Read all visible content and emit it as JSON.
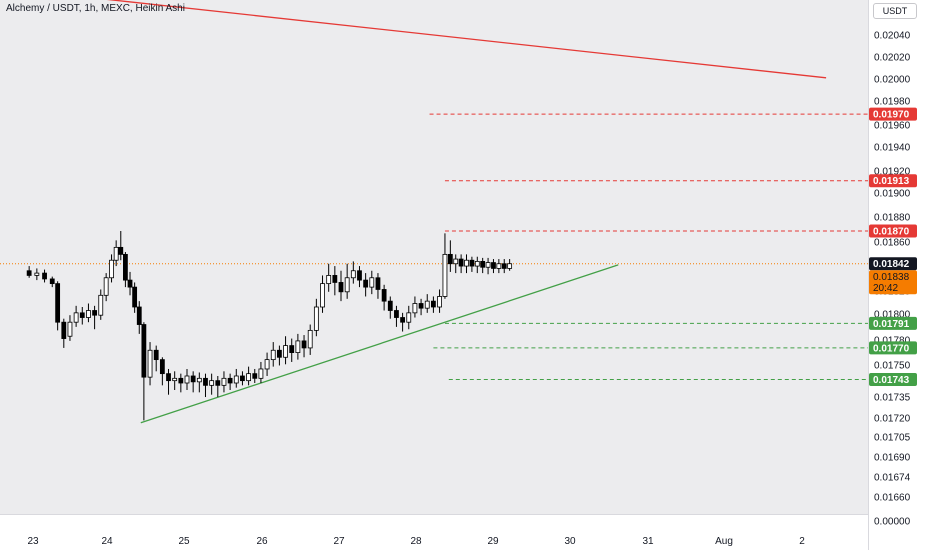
{
  "header": {
    "title": "Alchemy / USDT, 1h, MEXC, Heikin Ashi",
    "currency": "USDT"
  },
  "colors": {
    "up": "#ffffff",
    "down": "#000000",
    "resistance_red": "#e53935",
    "support_green": "#43a047",
    "current_price_bg": "#131722",
    "countdown_bg": "#f57c00"
  },
  "chart_data": {
    "type": "candlestick",
    "x_axis": {
      "ticks": [
        "23",
        "24",
        "25",
        "26",
        "27",
        "28",
        "29",
        "30",
        "31",
        "Aug",
        "2"
      ]
    },
    "y_axis": {
      "ticks": [
        "0.02040",
        "0.02020",
        "0.02000",
        "0.01980",
        "0.01960",
        "0.01940",
        "0.01920",
        "0.01900",
        "0.01880",
        "0.01860",
        "0.01820",
        "0.01800",
        "0.01780",
        "0.01750",
        "0.01735",
        "0.01720",
        "0.01705",
        "0.01690",
        "0.01674",
        "0.01660",
        "0.00000"
      ]
    },
    "lines": [
      {
        "style": "solid",
        "color": "red",
        "from": {
          "day": 23.0,
          "price": 0.02075
        },
        "to": {
          "day": 33.3,
          "price": 0.02001
        }
      },
      {
        "style": "solid",
        "color": "green",
        "from": {
          "day": 24.4,
          "price": 0.01706
        },
        "to": {
          "day": 30.6,
          "price": 0.01841
        }
      }
    ],
    "levels": [
      {
        "price": 0.0197,
        "label": "0.01970",
        "color": "red",
        "from_day": 28.15
      },
      {
        "price": 0.01913,
        "label": "0.01913",
        "color": "red",
        "from_day": 28.35
      },
      {
        "price": 0.0187,
        "label": "0.01870",
        "color": "red",
        "from_day": 28.35
      },
      {
        "price": 0.01791,
        "label": "0.01791",
        "color": "green",
        "from_day": 28.35
      },
      {
        "price": 0.0177,
        "label": "0.01770",
        "color": "green",
        "from_day": 28.2
      },
      {
        "price": 0.01743,
        "label": "0.01743",
        "color": "green",
        "from_day": 28.4
      }
    ],
    "current_price": {
      "value": 0.01842,
      "label": "0.01842"
    },
    "secondary_price": {
      "value": 0.01838,
      "label": "0.01838",
      "countdown": "20:42"
    },
    "candles": [
      {
        "d": 22.95,
        "o": 0.01836,
        "c": 0.01832,
        "h": 0.0184,
        "l": 0.0183
      },
      {
        "d": 23.05,
        "o": 0.01832,
        "c": 0.01834,
        "h": 0.01838,
        "l": 0.01828
      },
      {
        "d": 23.15,
        "o": 0.01834,
        "c": 0.01829,
        "h": 0.01837,
        "l": 0.01826
      },
      {
        "d": 23.25,
        "o": 0.01829,
        "c": 0.01825,
        "h": 0.01831,
        "l": 0.01822
      },
      {
        "d": 23.32,
        "o": 0.01825,
        "c": 0.01792,
        "h": 0.01827,
        "l": 0.01785
      },
      {
        "d": 23.4,
        "o": 0.01792,
        "c": 0.01778,
        "h": 0.01795,
        "l": 0.0177
      },
      {
        "d": 23.48,
        "o": 0.0178,
        "c": 0.01792,
        "h": 0.01798,
        "l": 0.01776
      },
      {
        "d": 23.56,
        "o": 0.01792,
        "c": 0.018,
        "h": 0.01806,
        "l": 0.01788
      },
      {
        "d": 23.64,
        "o": 0.018,
        "c": 0.01796,
        "h": 0.01805,
        "l": 0.0179
      },
      {
        "d": 23.72,
        "o": 0.01796,
        "c": 0.01802,
        "h": 0.01808,
        "l": 0.01792
      },
      {
        "d": 23.8,
        "o": 0.01802,
        "c": 0.01798,
        "h": 0.01806,
        "l": 0.01786
      },
      {
        "d": 23.88,
        "o": 0.01798,
        "c": 0.01815,
        "h": 0.0182,
        "l": 0.01794
      },
      {
        "d": 23.95,
        "o": 0.01815,
        "c": 0.0183,
        "h": 0.01834,
        "l": 0.0181
      },
      {
        "d": 24.02,
        "o": 0.0183,
        "c": 0.01845,
        "h": 0.0185,
        "l": 0.01826
      },
      {
        "d": 24.08,
        "o": 0.01845,
        "c": 0.01856,
        "h": 0.01862,
        "l": 0.0184
      },
      {
        "d": 24.14,
        "o": 0.01856,
        "c": 0.0185,
        "h": 0.0187,
        "l": 0.01845
      },
      {
        "d": 24.2,
        "o": 0.0185,
        "c": 0.01828,
        "h": 0.01852,
        "l": 0.01822
      },
      {
        "d": 24.26,
        "o": 0.01828,
        "c": 0.01822,
        "h": 0.01835,
        "l": 0.01815
      },
      {
        "d": 24.32,
        "o": 0.01822,
        "c": 0.01805,
        "h": 0.01826,
        "l": 0.018
      },
      {
        "d": 24.38,
        "o": 0.01805,
        "c": 0.0179,
        "h": 0.0181,
        "l": 0.01782
      },
      {
        "d": 24.44,
        "o": 0.0179,
        "c": 0.01745,
        "h": 0.01792,
        "l": 0.01708
      },
      {
        "d": 24.52,
        "o": 0.01745,
        "c": 0.01768,
        "h": 0.01775,
        "l": 0.01738
      },
      {
        "d": 24.6,
        "o": 0.01768,
        "c": 0.0176,
        "h": 0.01772,
        "l": 0.0175
      },
      {
        "d": 24.68,
        "o": 0.0176,
        "c": 0.01748,
        "h": 0.01762,
        "l": 0.01738
      },
      {
        "d": 24.76,
        "o": 0.01748,
        "c": 0.01742,
        "h": 0.01752,
        "l": 0.0173
      },
      {
        "d": 24.84,
        "o": 0.01742,
        "c": 0.01744,
        "h": 0.0175,
        "l": 0.01734
      },
      {
        "d": 24.92,
        "o": 0.01744,
        "c": 0.0174,
        "h": 0.01748,
        "l": 0.01732
      },
      {
        "d": 25.0,
        "o": 0.0174,
        "c": 0.01746,
        "h": 0.01752,
        "l": 0.01734
      },
      {
        "d": 25.08,
        "o": 0.01746,
        "c": 0.01741,
        "h": 0.0175,
        "l": 0.01732
      },
      {
        "d": 25.16,
        "o": 0.01741,
        "c": 0.01744,
        "h": 0.01749,
        "l": 0.01732
      },
      {
        "d": 25.24,
        "o": 0.01744,
        "c": 0.01738,
        "h": 0.01748,
        "l": 0.01728
      },
      {
        "d": 25.32,
        "o": 0.01738,
        "c": 0.01742,
        "h": 0.01748,
        "l": 0.0173
      },
      {
        "d": 25.4,
        "o": 0.01742,
        "c": 0.01738,
        "h": 0.01746,
        "l": 0.01728
      },
      {
        "d": 25.48,
        "o": 0.01738,
        "c": 0.01744,
        "h": 0.0175,
        "l": 0.01732
      },
      {
        "d": 25.56,
        "o": 0.01744,
        "c": 0.0174,
        "h": 0.01748,
        "l": 0.01734
      },
      {
        "d": 25.64,
        "o": 0.0174,
        "c": 0.01746,
        "h": 0.01752,
        "l": 0.01736
      },
      {
        "d": 25.72,
        "o": 0.01746,
        "c": 0.01742,
        "h": 0.0175,
        "l": 0.01738
      },
      {
        "d": 25.8,
        "o": 0.01742,
        "c": 0.01748,
        "h": 0.01754,
        "l": 0.01738
      },
      {
        "d": 25.88,
        "o": 0.01748,
        "c": 0.01744,
        "h": 0.01752,
        "l": 0.0174
      },
      {
        "d": 25.96,
        "o": 0.01744,
        "c": 0.01752,
        "h": 0.01758,
        "l": 0.0174
      },
      {
        "d": 26.04,
        "o": 0.01752,
        "c": 0.0176,
        "h": 0.01766,
        "l": 0.01746
      },
      {
        "d": 26.12,
        "o": 0.0176,
        "c": 0.01768,
        "h": 0.01775,
        "l": 0.01754
      },
      {
        "d": 26.2,
        "o": 0.01768,
        "c": 0.01762,
        "h": 0.01772,
        "l": 0.01755
      },
      {
        "d": 26.28,
        "o": 0.01762,
        "c": 0.01772,
        "h": 0.0178,
        "l": 0.01756
      },
      {
        "d": 26.36,
        "o": 0.01772,
        "c": 0.01766,
        "h": 0.01778,
        "l": 0.01758
      },
      {
        "d": 26.44,
        "o": 0.01766,
        "c": 0.01776,
        "h": 0.01782,
        "l": 0.0176
      },
      {
        "d": 26.52,
        "o": 0.01776,
        "c": 0.0177,
        "h": 0.01781,
        "l": 0.01762
      },
      {
        "d": 26.6,
        "o": 0.0177,
        "c": 0.01785,
        "h": 0.0179,
        "l": 0.01764
      },
      {
        "d": 26.68,
        "o": 0.01785,
        "c": 0.01805,
        "h": 0.01812,
        "l": 0.0178
      },
      {
        "d": 26.76,
        "o": 0.01805,
        "c": 0.01825,
        "h": 0.01832,
        "l": 0.018
      },
      {
        "d": 26.84,
        "o": 0.01825,
        "c": 0.01832,
        "h": 0.01842,
        "l": 0.01818
      },
      {
        "d": 26.92,
        "o": 0.01832,
        "c": 0.01826,
        "h": 0.0184,
        "l": 0.01815
      },
      {
        "d": 27.0,
        "o": 0.01826,
        "c": 0.01818,
        "h": 0.01836,
        "l": 0.0181
      },
      {
        "d": 27.08,
        "o": 0.01818,
        "c": 0.0183,
        "h": 0.01842,
        "l": 0.01812
      },
      {
        "d": 27.16,
        "o": 0.0183,
        "c": 0.01836,
        "h": 0.01844,
        "l": 0.01825
      },
      {
        "d": 27.24,
        "o": 0.01836,
        "c": 0.01828,
        "h": 0.0184,
        "l": 0.01822
      },
      {
        "d": 27.32,
        "o": 0.01828,
        "c": 0.01822,
        "h": 0.01834,
        "l": 0.01814
      },
      {
        "d": 27.4,
        "o": 0.01822,
        "c": 0.0183,
        "h": 0.01836,
        "l": 0.01816
      },
      {
        "d": 27.48,
        "o": 0.0183,
        "c": 0.0182,
        "h": 0.01834,
        "l": 0.01812
      },
      {
        "d": 27.56,
        "o": 0.0182,
        "c": 0.0181,
        "h": 0.01824,
        "l": 0.01802
      },
      {
        "d": 27.64,
        "o": 0.0181,
        "c": 0.01802,
        "h": 0.01814,
        "l": 0.01795
      },
      {
        "d": 27.72,
        "o": 0.01802,
        "c": 0.01796,
        "h": 0.01806,
        "l": 0.01788
      },
      {
        "d": 27.8,
        "o": 0.01796,
        "c": 0.01792,
        "h": 0.018,
        "l": 0.01784
      },
      {
        "d": 27.88,
        "o": 0.01792,
        "c": 0.018,
        "h": 0.01806,
        "l": 0.01786
      },
      {
        "d": 27.96,
        "o": 0.018,
        "c": 0.01808,
        "h": 0.01814,
        "l": 0.01796
      },
      {
        "d": 28.04,
        "o": 0.01808,
        "c": 0.01804,
        "h": 0.01812,
        "l": 0.01798
      },
      {
        "d": 28.12,
        "o": 0.01804,
        "c": 0.0181,
        "h": 0.01816,
        "l": 0.018
      },
      {
        "d": 28.2,
        "o": 0.0181,
        "c": 0.01805,
        "h": 0.01814,
        "l": 0.018
      },
      {
        "d": 28.28,
        "o": 0.01805,
        "c": 0.01814,
        "h": 0.0182,
        "l": 0.018
      },
      {
        "d": 28.35,
        "o": 0.01814,
        "c": 0.0185,
        "h": 0.01868,
        "l": 0.01812
      },
      {
        "d": 28.42,
        "o": 0.0185,
        "c": 0.01842,
        "h": 0.01862,
        "l": 0.01835
      },
      {
        "d": 28.49,
        "o": 0.01842,
        "c": 0.01846,
        "h": 0.0185,
        "l": 0.01834
      },
      {
        "d": 28.56,
        "o": 0.01846,
        "c": 0.0184,
        "h": 0.0185,
        "l": 0.01834
      },
      {
        "d": 28.63,
        "o": 0.0184,
        "c": 0.01845,
        "h": 0.0185,
        "l": 0.01834
      },
      {
        "d": 28.7,
        "o": 0.01845,
        "c": 0.0184,
        "h": 0.01848,
        "l": 0.01835
      },
      {
        "d": 28.77,
        "o": 0.0184,
        "c": 0.01844,
        "h": 0.01848,
        "l": 0.01834
      },
      {
        "d": 28.84,
        "o": 0.01844,
        "c": 0.01839,
        "h": 0.01847,
        "l": 0.01834
      },
      {
        "d": 28.91,
        "o": 0.01839,
        "c": 0.01843,
        "h": 0.01847,
        "l": 0.01833
      },
      {
        "d": 28.98,
        "o": 0.01843,
        "c": 0.01838,
        "h": 0.01846,
        "l": 0.01834
      },
      {
        "d": 29.05,
        "o": 0.01838,
        "c": 0.01842,
        "h": 0.01846,
        "l": 0.01834
      },
      {
        "d": 29.12,
        "o": 0.01842,
        "c": 0.01838,
        "h": 0.01846,
        "l": 0.01834
      },
      {
        "d": 29.19,
        "o": 0.01838,
        "c": 0.01842,
        "h": 0.01846,
        "l": 0.01836
      }
    ]
  }
}
